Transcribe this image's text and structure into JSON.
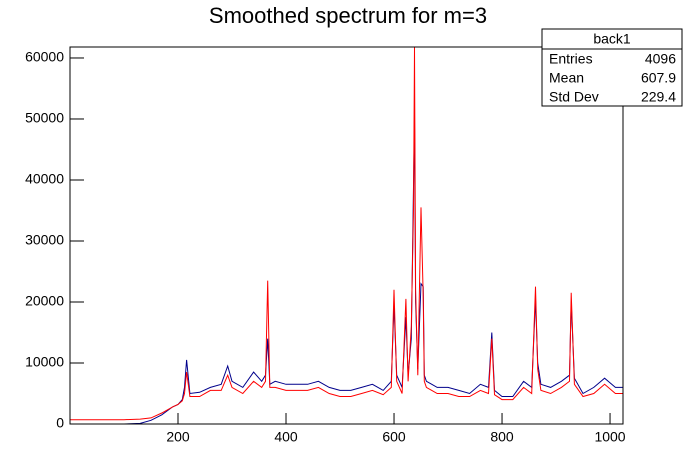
{
  "chart_data": {
    "type": "line",
    "title": "Smoothed spectrum for m=3",
    "stats": {
      "name": "back1",
      "rows": [
        [
          "Entries",
          "4096"
        ],
        [
          "Mean",
          "607.9"
        ],
        [
          "Std Dev",
          "229.4"
        ]
      ]
    },
    "x": [
      0,
      50,
      100,
      130,
      150,
      170,
      190,
      200,
      208,
      212,
      216,
      222,
      240,
      260,
      280,
      292,
      300,
      320,
      340,
      355,
      362,
      366,
      370,
      380,
      400,
      420,
      440,
      460,
      480,
      500,
      520,
      540,
      560,
      580,
      595,
      600,
      605,
      615,
      622,
      626,
      632,
      636,
      638,
      640,
      644,
      650,
      654,
      656,
      660,
      670,
      680,
      700,
      720,
      740,
      760,
      775,
      781,
      786,
      800,
      820,
      840,
      855,
      862,
      866,
      872,
      890,
      910,
      925,
      928,
      934,
      950,
      970,
      990,
      1010,
      1024
    ],
    "series": [
      {
        "color": "#00008b",
        "values": [
          0,
          0,
          0,
          100,
          600,
          1500,
          2800,
          3200,
          4000,
          6000,
          10500,
          5000,
          5200,
          6000,
          6500,
          9500,
          7000,
          6000,
          8500,
          7000,
          8000,
          14000,
          6500,
          7000,
          6500,
          6500,
          6500,
          7000,
          6000,
          5500,
          5500,
          6000,
          6500,
          5500,
          7000,
          19500,
          8000,
          6000,
          17500,
          8000,
          14000,
          39000,
          50000,
          20000,
          9000,
          23000,
          22500,
          8000,
          7000,
          6500,
          6000,
          6000,
          5500,
          5000,
          6500,
          6000,
          15000,
          5500,
          4500,
          4500,
          7000,
          6000,
          20500,
          10000,
          6500,
          6000,
          7000,
          8000,
          20000,
          7500,
          5000,
          6000,
          7500,
          6000,
          6000
        ]
      },
      {
        "color": "#ff0000",
        "values": [
          700,
          700,
          700,
          800,
          1000,
          1800,
          2800,
          3200,
          3800,
          5000,
          8500,
          4500,
          4500,
          5500,
          5500,
          8000,
          6000,
          5000,
          7000,
          6000,
          7000,
          23500,
          6000,
          6000,
          5500,
          5500,
          5500,
          6000,
          5000,
          4500,
          4500,
          5000,
          5500,
          4800,
          6000,
          22000,
          7000,
          5000,
          20500,
          7000,
          16000,
          35000,
          61800,
          22000,
          8000,
          35500,
          21000,
          7000,
          6000,
          5500,
          5000,
          5000,
          4500,
          4500,
          5500,
          5000,
          14000,
          4800,
          4000,
          4000,
          6000,
          5000,
          22500,
          9000,
          5500,
          5000,
          6000,
          7000,
          21500,
          6500,
          4500,
          5000,
          6500,
          5000,
          5000
        ]
      }
    ],
    "xlim": [
      0,
      1024
    ],
    "ylim": [
      0,
      61800
    ],
    "xticks": [
      200,
      400,
      600,
      800,
      1000
    ],
    "yticks": [
      0,
      10000,
      20000,
      30000,
      40000,
      50000,
      60000
    ]
  }
}
